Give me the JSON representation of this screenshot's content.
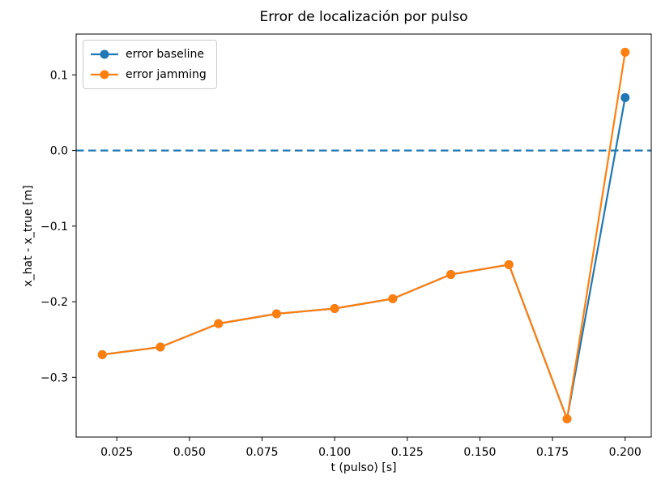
{
  "figure": {
    "background": "#ffffff",
    "text_color": "#000000",
    "spine_color": "#000000"
  },
  "chart_data": {
    "type": "line",
    "title": "Error de localización por pulso",
    "xlabel": "t (pulso) [s]",
    "ylabel": "x_hat - x_true [m]",
    "x": [
      0.02,
      0.04,
      0.06,
      0.08,
      0.1,
      0.12,
      0.14,
      0.16,
      0.18,
      0.2
    ],
    "series": [
      {
        "name": "error baseline",
        "color": "#1f77b4",
        "marker": "circle",
        "values": [
          -0.27,
          -0.26,
          -0.229,
          -0.216,
          -0.209,
          -0.196,
          -0.164,
          -0.151,
          -0.355,
          0.07
        ]
      },
      {
        "name": "error jamming",
        "color": "#ff7f0e",
        "marker": "circle",
        "values": [
          -0.27,
          -0.26,
          -0.229,
          -0.216,
          -0.209,
          -0.196,
          -0.164,
          -0.151,
          -0.355,
          0.13
        ]
      }
    ],
    "zero_line": {
      "y": 0.0,
      "color": "#1f77b4",
      "style": "dashed"
    },
    "xlim": [
      0.011,
      0.209
    ],
    "ylim": [
      -0.379,
      0.154
    ],
    "x_ticks": [
      0.025,
      0.05,
      0.075,
      0.1,
      0.125,
      0.15,
      0.175,
      0.2
    ],
    "x_tick_labels": [
      "0.025",
      "0.050",
      "0.075",
      "0.100",
      "0.125",
      "0.150",
      "0.175",
      "0.200"
    ],
    "y_ticks": [
      0.1,
      0.0,
      -0.1,
      -0.2,
      -0.3
    ],
    "y_tick_labels": [
      "0.1",
      "0.0",
      "−0.1",
      "−0.2",
      "−0.3"
    ],
    "grid": false,
    "legend_position": "upper left"
  }
}
